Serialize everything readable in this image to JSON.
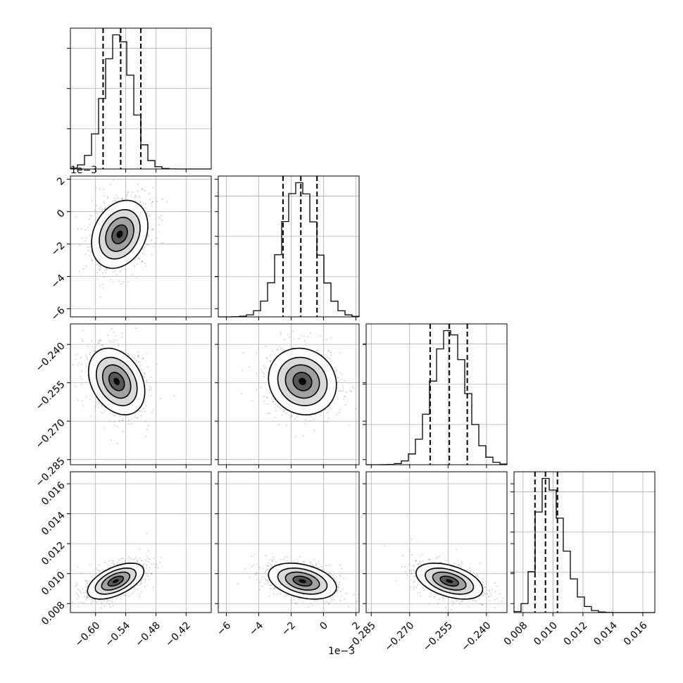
{
  "figure": {
    "background": "#ffffff"
  },
  "chart_data": {
    "type": "corner",
    "colors": {
      "line": "#000000",
      "grid": "#b0b0b0",
      "points": "#808080"
    },
    "parameters": [
      {
        "range": [
          -0.65,
          -0.37
        ],
        "ticks": [
          -0.6,
          -0.54,
          -0.48,
          -0.42
        ],
        "tick_labels": [
          "−0.60",
          "−0.54",
          "−0.48",
          "−0.42"
        ],
        "quantiles": [
          -0.585,
          -0.55,
          -0.51
        ],
        "peak": -0.555,
        "sd": 0.028,
        "offset_text": ""
      },
      {
        "range": [
          -6.5,
          2.2
        ],
        "ticks": [
          -6,
          -4,
          -2,
          0,
          2
        ],
        "tick_labels": [
          "−6",
          "−4",
          "−2",
          "0",
          "2"
        ],
        "quantiles": [
          -2.5,
          -1.4,
          -0.4
        ],
        "peak": -1.5,
        "sd": 1.05,
        "offset_text": "1e−3"
      },
      {
        "range": [
          -0.287,
          -0.232
        ],
        "ticks": [
          -0.285,
          -0.27,
          -0.255,
          -0.24
        ],
        "tick_labels": [
          "−0.285",
          "−0.270",
          "−0.255",
          "−0.240"
        ],
        "quantiles": [
          -0.262,
          -0.2545,
          -0.2475
        ],
        "peak": -0.2545,
        "sd": 0.0065,
        "offset_text": ""
      },
      {
        "range": [
          0.0074,
          0.0168
        ],
        "ticks": [
          0.008,
          0.01,
          0.012,
          0.014,
          0.016
        ],
        "tick_labels": [
          "0.008",
          "0.010",
          "0.012",
          "0.014",
          "0.016"
        ],
        "quantiles": [
          0.0088,
          0.0095,
          0.0103
        ],
        "peak": 0.0095,
        "sd": 0.0006,
        "offset_text": ""
      }
    ],
    "pairs": [
      {
        "row": 1,
        "col": 0,
        "center": [
          -0.552,
          -1.4
        ],
        "correlation": 0.25
      },
      {
        "row": 2,
        "col": 0,
        "center": [
          -0.558,
          -0.2545
        ],
        "correlation": -0.3
      },
      {
        "row": 2,
        "col": 1,
        "center": [
          -1.3,
          -0.2545
        ],
        "correlation": -0.1
      },
      {
        "row": 3,
        "col": 0,
        "center": [
          -0.56,
          0.0095
        ],
        "correlation": 0.55
      },
      {
        "row": 3,
        "col": 1,
        "center": [
          -1.3,
          0.0095
        ],
        "correlation": -0.35
      },
      {
        "row": 3,
        "col": 2,
        "center": [
          -0.2545,
          0.0095
        ],
        "correlation": -0.45
      }
    ]
  }
}
